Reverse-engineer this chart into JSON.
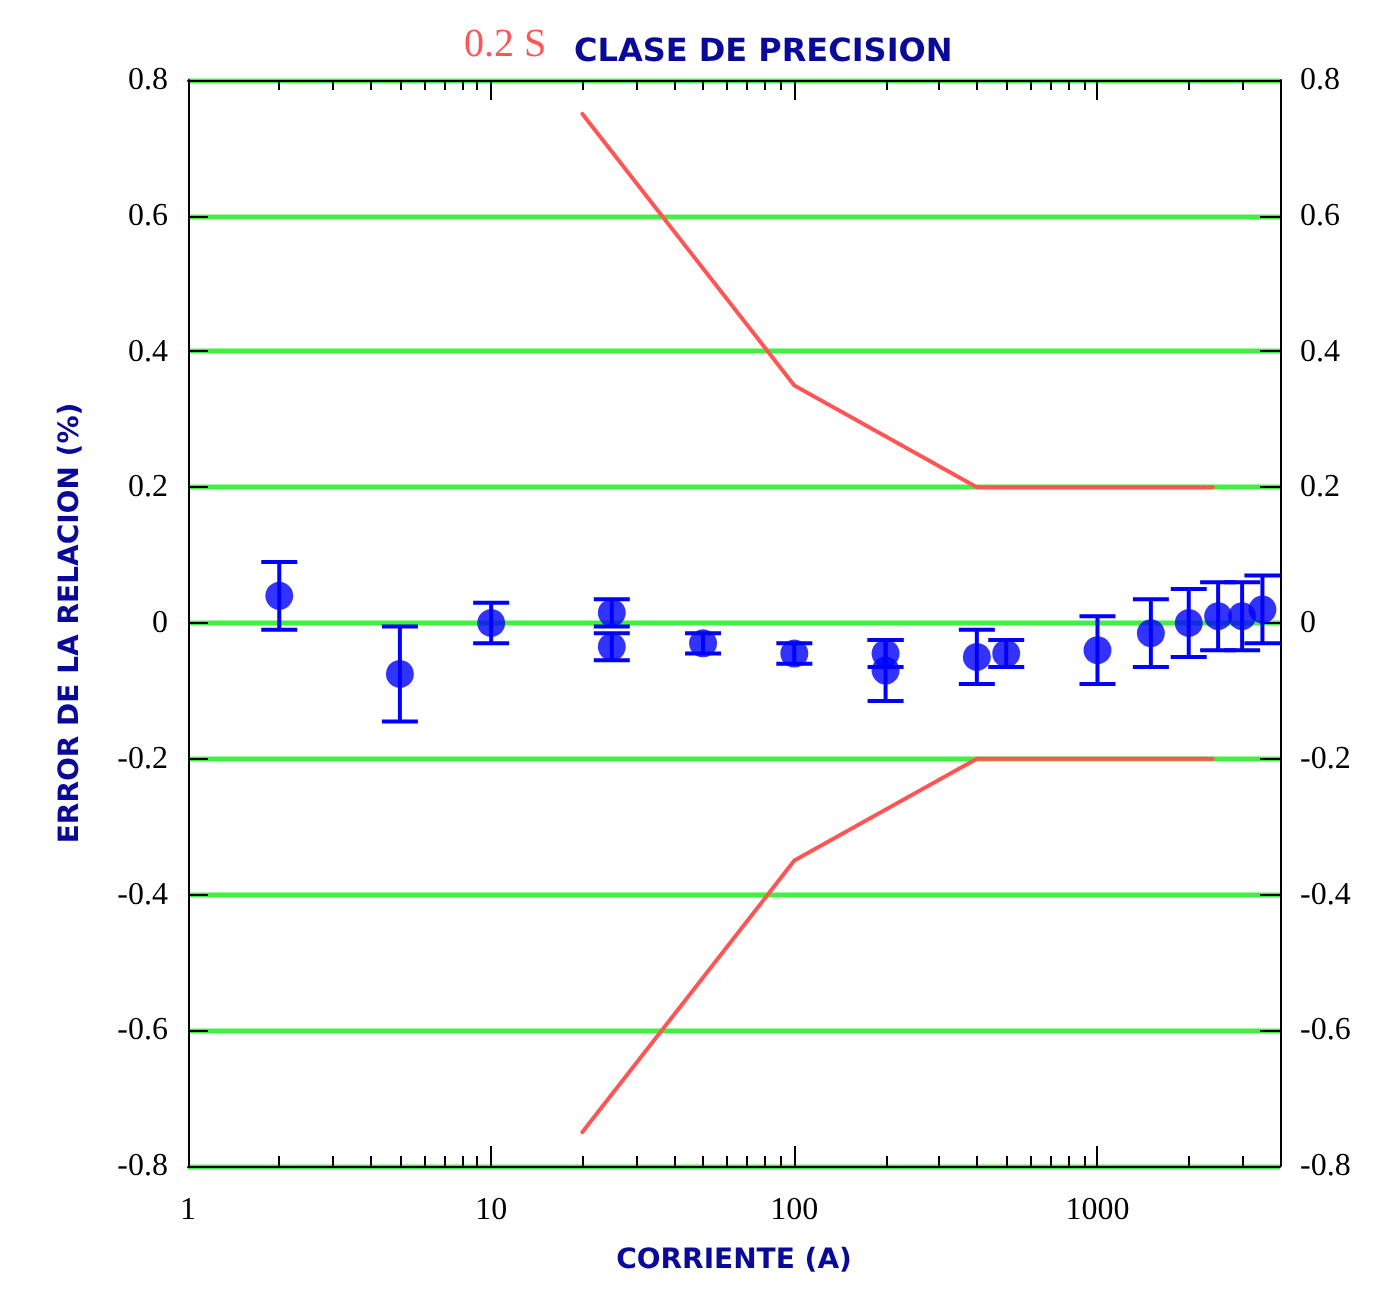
{
  "chart_data": {
    "type": "scatter",
    "title": "CLASE DE PRECISION",
    "xlabel": "CORRIENTE (A)",
    "ylabel": "ERROR DE LA RELACION (%)",
    "log": "x",
    "grid": "y",
    "legend": false,
    "marker": "circle",
    "xlim": [
      1,
      4000
    ],
    "xticks": [
      1,
      10,
      100,
      1000
    ],
    "ylim": [
      -0.8,
      0.8
    ],
    "yticks": [
      -0.8,
      -0.6,
      -0.4,
      -0.2,
      0,
      0.2,
      0.4,
      0.6,
      0.8
    ],
    "y2lim": [
      -0.8,
      0.8
    ],
    "y2ticks": [
      -0.8,
      -0.6,
      -0.4,
      -0.2,
      0,
      0.2,
      0.4,
      0.6,
      0.8
    ],
    "series": [
      {
        "color": "#0000ff",
        "x": [
          2,
          5,
          10,
          25,
          25,
          50,
          100,
          200,
          200,
          400,
          500,
          1000,
          1500,
          2000,
          2500,
          3000,
          3500
        ],
        "values": [
          0.04,
          -0.075,
          0.0,
          0.015,
          -0.035,
          -0.03,
          -0.045,
          -0.045,
          -0.07,
          -0.05,
          -0.045,
          -0.04,
          -0.015,
          0.0,
          0.01,
          0.01,
          0.02
        ],
        "errors": [
          0.05,
          0.07,
          0.03,
          0.02,
          0.02,
          0.015,
          0.015,
          0.02,
          0.045,
          0.04,
          0.02,
          0.05,
          0.05,
          0.05,
          0.05,
          0.05,
          0.05
        ]
      },
      {
        "type": "line",
        "name": "0.2 S",
        "color": "#ff5555",
        "marker": "none",
        "x": [
          20,
          100,
          400,
          2400
        ],
        "values": [
          0.75,
          0.35,
          0.2,
          0.2
        ]
      },
      {
        "type": "line",
        "color": "#ff5555",
        "marker": "none",
        "x": [
          20,
          100,
          400,
          2400
        ],
        "values": [
          -0.75,
          -0.35,
          -0.2,
          -0.2
        ]
      }
    ]
  }
}
